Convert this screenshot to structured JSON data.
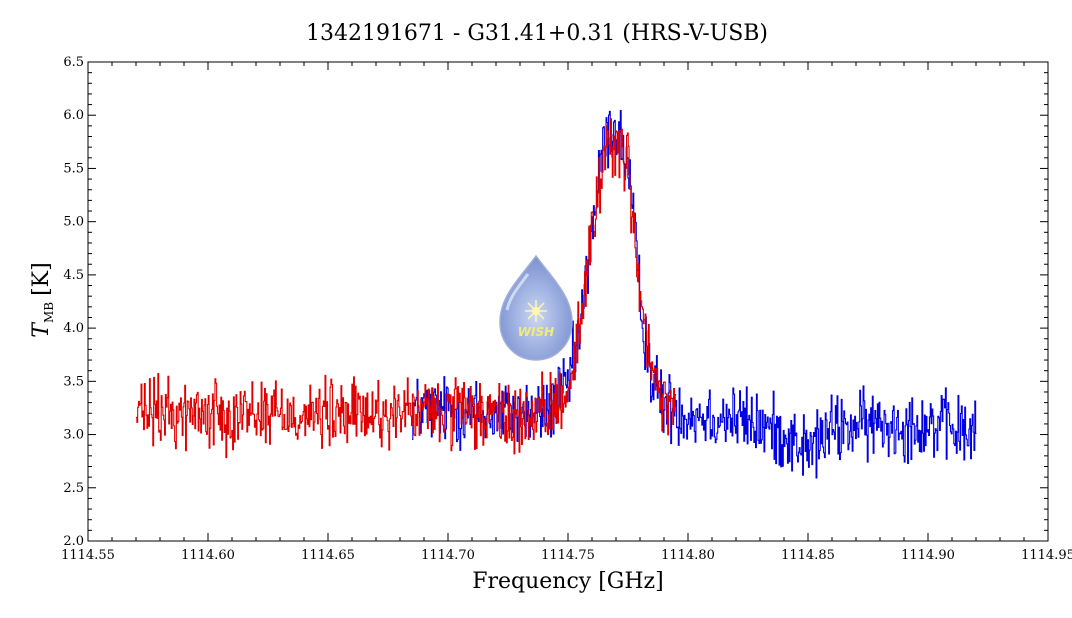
{
  "chart_data": {
    "type": "line",
    "title": "1342191671 - G31.41+0.31 (HRS-V-USB)",
    "xlabel": "Frequency [GHz]",
    "ylabel_main": "T",
    "ylabel_sub": "MB",
    "ylabel_unit": "[K]",
    "xlim": [
      1114.55,
      1114.95
    ],
    "ylim": [
      2.0,
      6.5
    ],
    "xticks": [
      "1114.55",
      "1114.60",
      "1114.65",
      "1114.70",
      "1114.75",
      "1114.80",
      "1114.85",
      "1114.90",
      "1114.95"
    ],
    "yticks": [
      "2.0",
      "2.5",
      "3.0",
      "3.5",
      "4.0",
      "4.5",
      "5.0",
      "5.5",
      "6.0",
      "6.5"
    ],
    "grid": false,
    "logo_text": "WISH",
    "series": [
      {
        "color": "#0000e0",
        "x": [
          1114.685,
          1114.7,
          1114.72,
          1114.74,
          1114.75,
          1114.755,
          1114.76,
          1114.765,
          1114.77,
          1114.775,
          1114.78,
          1114.785,
          1114.79,
          1114.8,
          1114.82,
          1114.84,
          1114.85,
          1114.86,
          1114.88,
          1114.9,
          1114.92
        ],
        "y": [
          3.25,
          3.22,
          3.2,
          3.2,
          3.45,
          4.0,
          4.95,
          5.75,
          5.9,
          5.5,
          4.25,
          3.5,
          3.28,
          3.2,
          3.15,
          3.0,
          2.85,
          3.05,
          3.1,
          3.1,
          3.0
        ]
      },
      {
        "color": "#e00000",
        "x": [
          1114.57,
          1114.6,
          1114.62,
          1114.65,
          1114.68,
          1114.7,
          1114.72,
          1114.74,
          1114.75,
          1114.755,
          1114.76,
          1114.765,
          1114.77,
          1114.775,
          1114.78,
          1114.785,
          1114.79,
          1114.795
        ],
        "y": [
          3.2,
          3.2,
          3.22,
          3.18,
          3.2,
          3.22,
          3.15,
          3.15,
          3.45,
          4.0,
          4.95,
          5.65,
          5.8,
          5.5,
          4.25,
          3.5,
          3.3,
          3.25
        ]
      }
    ]
  }
}
